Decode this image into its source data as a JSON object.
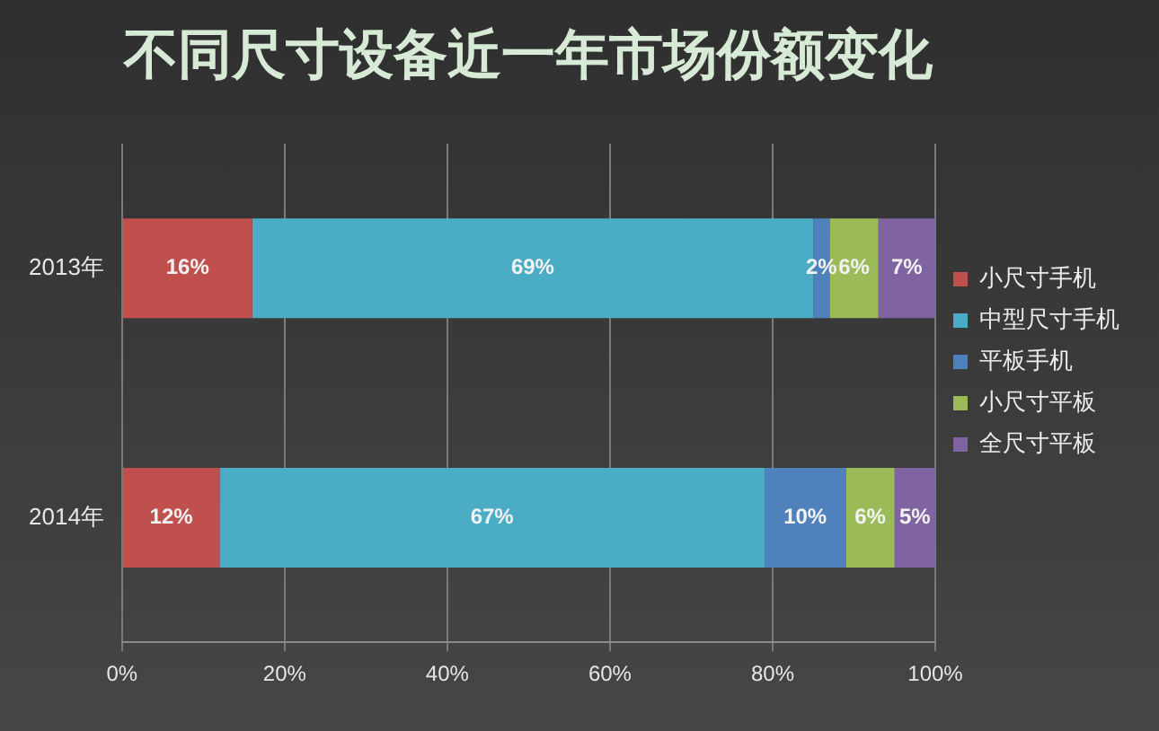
{
  "chart_data": {
    "type": "bar",
    "title": "不同尺寸设备近一年市场份额变化",
    "orientation": "horizontal",
    "stacked": true,
    "categories": [
      "2013年",
      "2014年"
    ],
    "series": [
      {
        "name": "小尺寸手机",
        "color": "#c0504d",
        "values": [
          16,
          12
        ],
        "value_labels": [
          "16%",
          "12%"
        ]
      },
      {
        "name": "中型尺寸手机",
        "color": "#4bacc6",
        "values": [
          69,
          67
        ],
        "value_labels": [
          "69%",
          "67%"
        ]
      },
      {
        "name": "平板手机",
        "color": "#4f81bd",
        "values": [
          2,
          10
        ],
        "value_labels": [
          "2%",
          "10%"
        ]
      },
      {
        "name": "小尺寸平板",
        "color": "#9bbb59",
        "values": [
          6,
          6
        ],
        "value_labels": [
          "6%",
          "6%"
        ]
      },
      {
        "name": "全尺寸平板",
        "color": "#8064a2",
        "values": [
          7,
          5
        ],
        "value_labels": [
          "7%",
          "5%"
        ]
      }
    ],
    "xlim": [
      0,
      100
    ],
    "xticks": [
      {
        "value": 0,
        "label": "0%"
      },
      {
        "value": 20,
        "label": "20%"
      },
      {
        "value": 40,
        "label": "40%"
      },
      {
        "value": 60,
        "label": "60%"
      },
      {
        "value": 80,
        "label": "80%"
      },
      {
        "value": 100,
        "label": "100%"
      }
    ],
    "grid": "x",
    "legend": "right"
  }
}
